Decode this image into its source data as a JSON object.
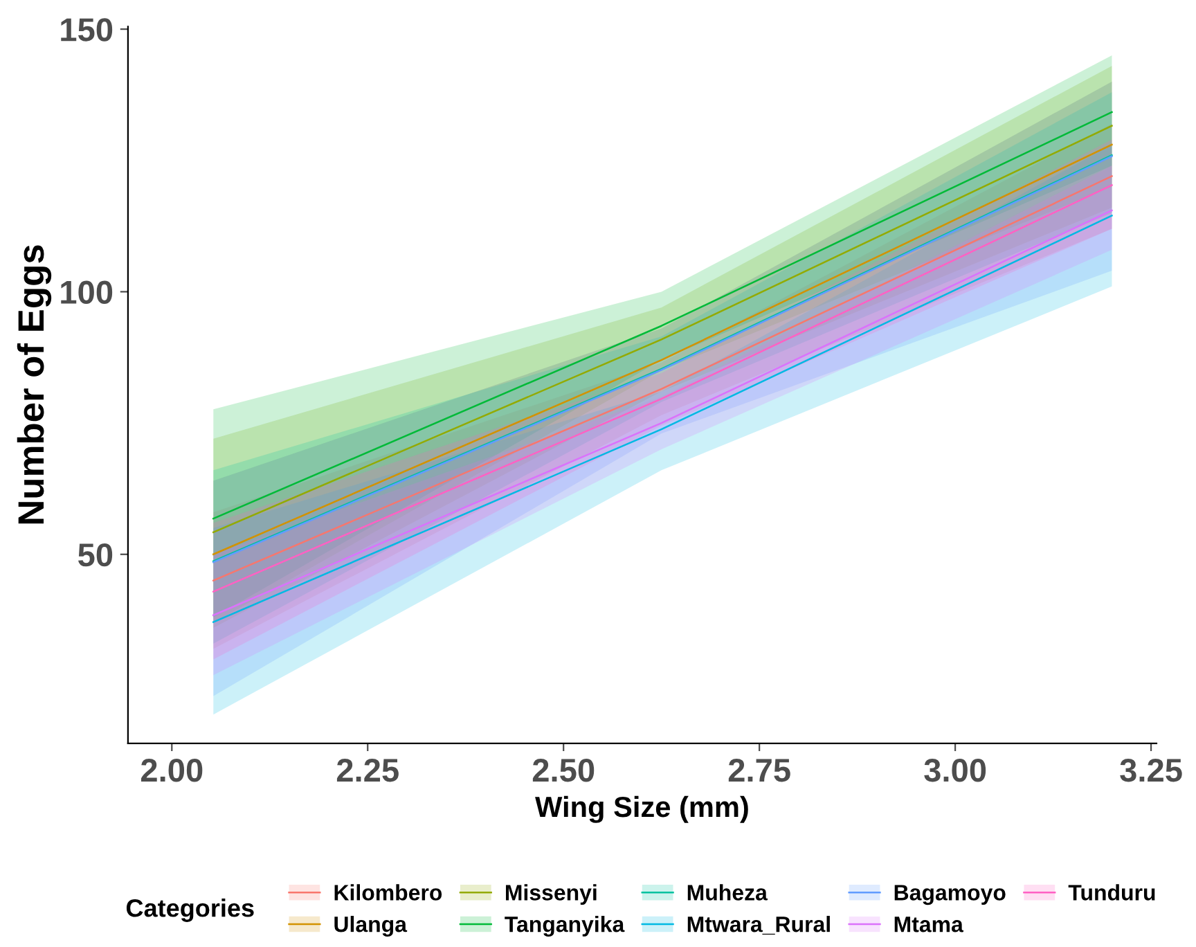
{
  "chart_data": {
    "type": "line",
    "xlabel": "Wing Size (mm)",
    "ylabel": "Number of Eggs",
    "legend_title": "Categories",
    "xlim": [
      1.944,
      3.257
    ],
    "ylim": [
      14,
      150.5
    ],
    "xticks": [
      {
        "value": 2.0,
        "label": "2.00"
      },
      {
        "value": 2.25,
        "label": "2.25"
      },
      {
        "value": 2.5,
        "label": "2.50"
      },
      {
        "value": 2.75,
        "label": "2.75"
      },
      {
        "value": 3.0,
        "label": "3.00"
      },
      {
        "value": 3.25,
        "label": "3.25"
      }
    ],
    "yticks": [
      50,
      100,
      150
    ],
    "x": [
      2.053,
      2.625,
      3.2
    ],
    "grid": false,
    "legend": "bottom",
    "marker": "none",
    "line_style": "solid",
    "series": [
      {
        "name": "Kilombero",
        "color": "#f8766d",
        "values": [
          45,
          81.5,
          122
        ],
        "lower": [
          32,
          76.5,
          112
        ],
        "upper": [
          58,
          86.5,
          132
        ]
      },
      {
        "name": "Ulanga",
        "color": "#d39200",
        "values": [
          50,
          87,
          128
        ],
        "lower": [
          36,
          81,
          116
        ],
        "upper": [
          64,
          93,
          140
        ]
      },
      {
        "name": "Missenyi",
        "color": "#93aa00",
        "values": [
          54.2,
          90.9,
          131.6
        ],
        "lower": [
          37,
          85,
          120
        ],
        "upper": [
          72,
          97,
          143
        ]
      },
      {
        "name": "Tanganyika",
        "color": "#00ba38",
        "values": [
          56.8,
          93.5,
          134.2
        ],
        "lower": [
          38,
          87,
          124
        ],
        "upper": [
          77.6,
          100,
          145
        ]
      },
      {
        "name": "Muheza",
        "color": "#00c19f",
        "values": [
          48.7,
          85.3,
          126
        ],
        "lower": [
          33,
          79,
          115
        ],
        "upper": [
          66,
          91.5,
          138
        ]
      },
      {
        "name": "Mtwara_Rural",
        "color": "#00b9e3",
        "values": [
          37.1,
          73.8,
          114.5
        ],
        "lower": [
          19.5,
          66,
          101
        ],
        "upper": [
          55,
          81,
          128
        ]
      },
      {
        "name": "Bagamoyo",
        "color": "#619cff",
        "values": [
          48.5,
          85.1,
          125.8
        ],
        "lower": [
          23,
          73,
          104
        ],
        "upper": [
          64,
          93,
          140
        ]
      },
      {
        "name": "Mtama",
        "color": "#db72fb",
        "values": [
          38.4,
          75,
          115.5
        ],
        "lower": [
          27,
          70,
          108
        ],
        "upper": [
          50,
          80,
          124
        ]
      },
      {
        "name": "Tunduru",
        "color": "#ff61c3",
        "values": [
          42.9,
          79.6,
          120.3
        ],
        "lower": [
          30,
          74.5,
          112
        ],
        "upper": [
          56,
          84.5,
          129
        ]
      }
    ]
  }
}
